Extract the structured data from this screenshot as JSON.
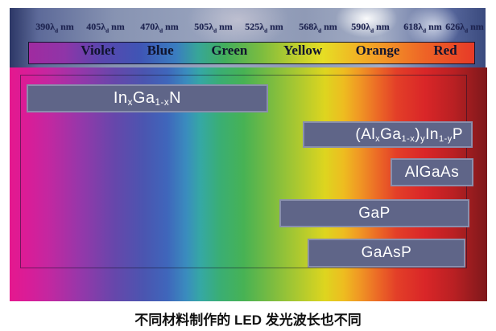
{
  "spectrum": {
    "wavelengths": [
      "390λ~d~ nm",
      "405λ~d~ nm",
      "470λ~d~ nm",
      "505λ~d~ nm",
      "525λ~d~ nm",
      "568λ~d~ nm",
      "590λ~d~ nm",
      "618λ~d~ nm",
      "626λ~d~ nm"
    ],
    "color_names": [
      "Violet",
      "Blue",
      "Green",
      "Yellow",
      "Orange",
      "Red"
    ]
  },
  "materials": [
    {
      "name": "InGaN",
      "formula": "In~x~Ga~1-x~N"
    },
    {
      "name": "AlGaInP",
      "formula": "(Al~x~Ga~1-x~)~y~In~1-y~P"
    },
    {
      "name": "AlGaAs",
      "formula": "AlGaAs"
    },
    {
      "name": "GaP",
      "formula": "GaP"
    },
    {
      "name": "GaAsP",
      "formula": "GaAsP"
    }
  ],
  "caption": "不同材料制作的 LED 发光波长也不同",
  "colors": {
    "material_bar_fill": "#5f6588",
    "material_bar_border": "#c3cae0",
    "label_text": "#10142e",
    "spectrum_left_magenta": "#e5188e",
    "spectrum_right_dark_red": "#7d181b"
  }
}
